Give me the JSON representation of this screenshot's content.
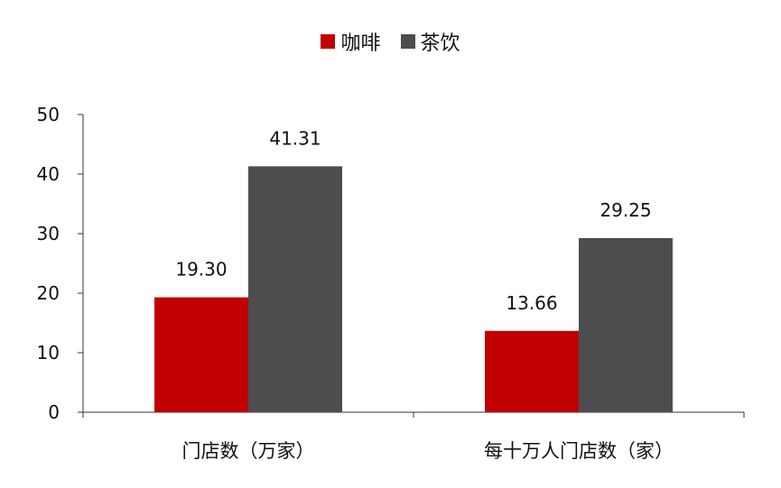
{
  "chart_data": {
    "type": "bar",
    "categories": [
      "门店数（万家）",
      "每十万人门店数（家）"
    ],
    "series": [
      {
        "name": "咖啡",
        "values": [
          19.3,
          13.66
        ],
        "labels": [
          "19.30",
          "13.66"
        ],
        "color": "#C00000"
      },
      {
        "name": "茶饮",
        "values": [
          41.31,
          29.25
        ],
        "labels": [
          "41.31",
          "29.25"
        ],
        "color": "#4D4D4F"
      }
    ],
    "yticks": [
      "0",
      "10",
      "20",
      "30",
      "40",
      "50"
    ],
    "ylim": [
      0,
      50
    ],
    "grid": false,
    "legend": "top-center"
  }
}
